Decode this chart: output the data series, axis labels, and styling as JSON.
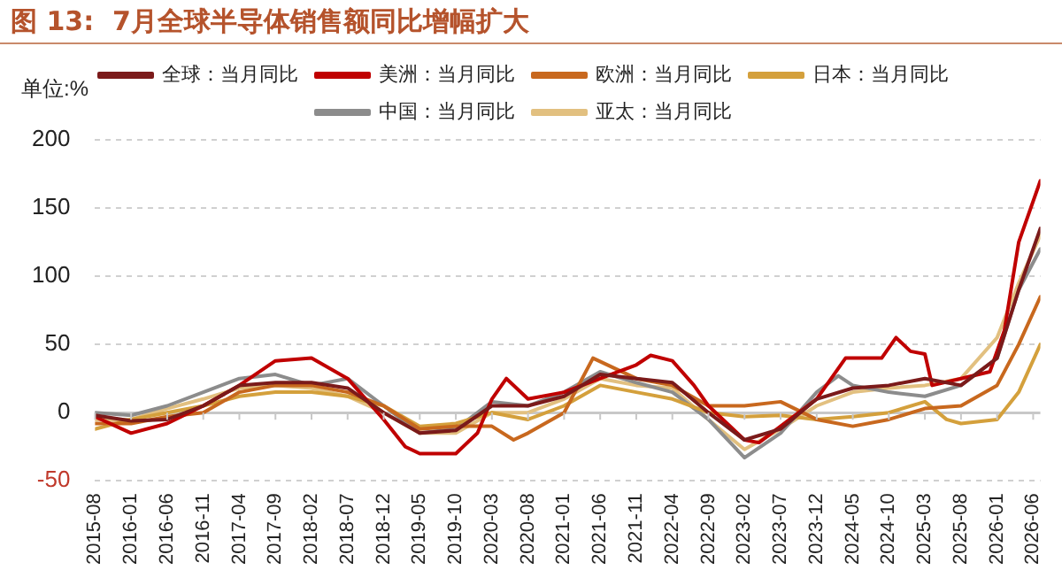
{
  "chart_data": {
    "type": "line",
    "title": "图 13:  7月全球半导体销售额同比增幅扩大",
    "ylabel": "单位:%",
    "xlim": [
      "2015-08",
      "2026-07"
    ],
    "xticks": [
      "2015-08",
      "2016-01",
      "2016-06",
      "2016-11",
      "2017-04",
      "2017-09",
      "2018-02",
      "2018-07",
      "2018-12",
      "2019-05",
      "2019-10",
      "2020-03",
      "2020-08",
      "2021-01",
      "2021-06",
      "2021-11",
      "2022-04",
      "2022-09",
      "2023-02",
      "2023-07",
      "2023-12",
      "2024-05",
      "2024-10",
      "2025-03",
      "2025-08",
      "2026-01",
      "2026-06"
    ],
    "ylim": [
      -50,
      200
    ],
    "yticks": [
      -50,
      0,
      50,
      100,
      150,
      200
    ],
    "grid": "y",
    "legend": "top",
    "marker": "none",
    "line_style": "solid",
    "series": [
      {
        "name": "全球：当月同比",
        "color": "#7b1a1a",
        "x": [
          "2015-08",
          "2016-01",
          "2016-06",
          "2016-11",
          "2017-04",
          "2017-09",
          "2018-02",
          "2018-07",
          "2018-12",
          "2019-05",
          "2019-10",
          "2020-03",
          "2020-08",
          "2021-01",
          "2021-06",
          "2021-11",
          "2022-04",
          "2022-09",
          "2023-02",
          "2023-07",
          "2023-12",
          "2024-05",
          "2024-10",
          "2025-03",
          "2025-08",
          "2026-01",
          "2026-04",
          "2026-07"
        ],
        "values": [
          -2,
          -6,
          -5,
          5,
          20,
          22,
          22,
          18,
          0,
          -15,
          -13,
          5,
          5,
          12,
          28,
          25,
          22,
          0,
          -20,
          -12,
          10,
          18,
          20,
          25,
          20,
          40,
          90,
          135
        ]
      },
      {
        "name": "美洲：当月同比",
        "color": "#c00000",
        "x": [
          "2015-08",
          "2016-01",
          "2016-06",
          "2016-11",
          "2017-04",
          "2017-09",
          "2018-02",
          "2018-07",
          "2018-12",
          "2019-03",
          "2019-05",
          "2019-10",
          "2020-01",
          "2020-03",
          "2020-05",
          "2020-08",
          "2021-01",
          "2021-06",
          "2021-11",
          "2022-01",
          "2022-04",
          "2022-07",
          "2022-09",
          "2023-02",
          "2023-04",
          "2023-07",
          "2023-12",
          "2024-04",
          "2024-09",
          "2024-11",
          "2025-01",
          "2025-03",
          "2025-04",
          "2025-08",
          "2025-12",
          "2026-02",
          "2026-04",
          "2026-07"
        ],
        "values": [
          -3,
          -15,
          -8,
          5,
          20,
          38,
          40,
          25,
          -5,
          -25,
          -30,
          -30,
          -15,
          10,
          25,
          10,
          15,
          25,
          35,
          42,
          38,
          20,
          5,
          -20,
          -22,
          -10,
          10,
          40,
          40,
          55,
          45,
          43,
          20,
          25,
          30,
          60,
          125,
          170
        ]
      },
      {
        "name": "欧洲：当月同比",
        "color": "#c8681e",
        "x": [
          "2015-08",
          "2016-01",
          "2016-06",
          "2016-11",
          "2017-04",
          "2017-09",
          "2018-02",
          "2018-07",
          "2018-12",
          "2019-05",
          "2019-10",
          "2020-03",
          "2020-06",
          "2020-08",
          "2021-01",
          "2021-05",
          "2021-11",
          "2022-04",
          "2022-09",
          "2023-02",
          "2023-07",
          "2023-12",
          "2024-05",
          "2024-10",
          "2025-03",
          "2025-08",
          "2026-01",
          "2026-04",
          "2026-07"
        ],
        "values": [
          -8,
          -8,
          -3,
          0,
          15,
          20,
          20,
          15,
          5,
          -12,
          -10,
          -10,
          -20,
          -15,
          0,
          40,
          25,
          20,
          5,
          5,
          8,
          -5,
          -10,
          -5,
          3,
          5,
          20,
          50,
          85
        ]
      },
      {
        "name": "日本：当月同比",
        "color": "#d4a03c",
        "x": [
          "2015-08",
          "2016-01",
          "2016-06",
          "2016-11",
          "2017-04",
          "2017-09",
          "2018-02",
          "2018-07",
          "2018-12",
          "2019-05",
          "2019-10",
          "2020-03",
          "2020-08",
          "2021-01",
          "2021-06",
          "2021-11",
          "2022-04",
          "2022-09",
          "2023-02",
          "2023-07",
          "2023-12",
          "2024-05",
          "2024-10",
          "2025-03",
          "2025-06",
          "2025-08",
          "2026-01",
          "2026-04",
          "2026-07"
        ],
        "values": [
          -12,
          -5,
          0,
          5,
          12,
          15,
          15,
          12,
          5,
          -10,
          -8,
          0,
          -5,
          5,
          20,
          15,
          10,
          0,
          -3,
          -2,
          -5,
          -3,
          0,
          8,
          -5,
          -8,
          -5,
          15,
          50
        ]
      },
      {
        "name": "中国：当月同比",
        "color": "#8c8c8c",
        "x": [
          "2015-08",
          "2016-01",
          "2016-06",
          "2016-11",
          "2017-04",
          "2017-09",
          "2018-02",
          "2018-07",
          "2018-12",
          "2019-05",
          "2019-10",
          "2020-03",
          "2020-08",
          "2021-01",
          "2021-06",
          "2021-11",
          "2022-04",
          "2022-09",
          "2023-02",
          "2023-07",
          "2023-12",
          "2024-03",
          "2024-05",
          "2024-10",
          "2025-03",
          "2025-08",
          "2026-01",
          "2026-04",
          "2026-07"
        ],
        "values": [
          0,
          -2,
          5,
          15,
          25,
          28,
          20,
          25,
          5,
          -15,
          -12,
          8,
          5,
          15,
          30,
          22,
          15,
          -5,
          -33,
          -15,
          15,
          27,
          20,
          15,
          12,
          20,
          40,
          90,
          120
        ]
      },
      {
        "name": "亚太：当月同比",
        "color": "#e2c080",
        "x": [
          "2015-08",
          "2016-01",
          "2016-06",
          "2016-11",
          "2017-04",
          "2017-09",
          "2018-02",
          "2018-07",
          "2018-12",
          "2019-05",
          "2019-10",
          "2020-03",
          "2020-08",
          "2021-01",
          "2021-06",
          "2021-11",
          "2022-04",
          "2022-09",
          "2023-02",
          "2023-07",
          "2023-12",
          "2024-05",
          "2024-10",
          "2025-03",
          "2025-08",
          "2026-01",
          "2026-04",
          "2026-07"
        ],
        "values": [
          -5,
          -5,
          3,
          10,
          18,
          20,
          18,
          12,
          0,
          -15,
          -15,
          0,
          0,
          10,
          25,
          20,
          18,
          -5,
          -27,
          -12,
          5,
          15,
          18,
          20,
          25,
          55,
          95,
          130
        ]
      }
    ]
  }
}
